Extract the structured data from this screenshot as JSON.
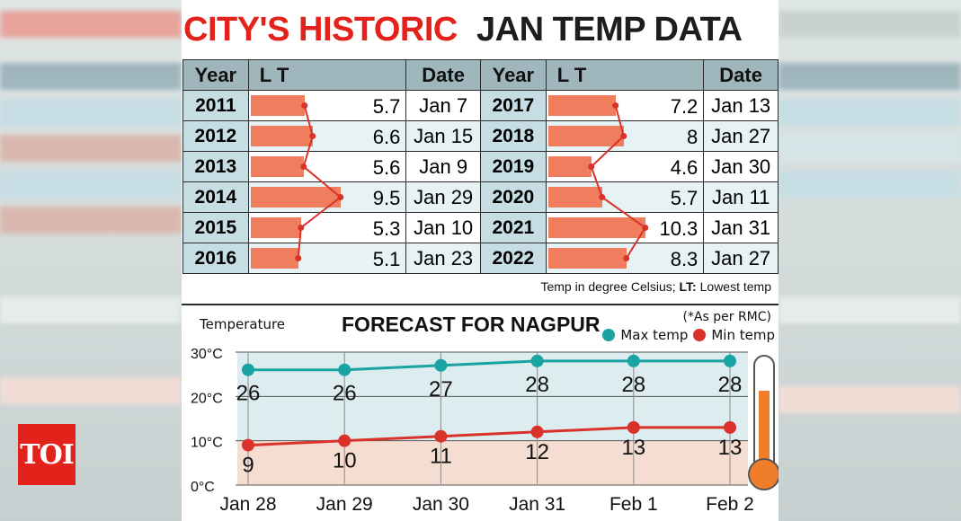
{
  "branding": {
    "logo_text": "TOI"
  },
  "title": {
    "part1": "CITY'S HISTORIC",
    "part2": "JAN TEMP DATA"
  },
  "table": {
    "headers": {
      "year": "Year",
      "lt": "L T",
      "date": "Date"
    },
    "left": [
      {
        "year": "2011",
        "lt": "5.7",
        "date": "Jan 7"
      },
      {
        "year": "2012",
        "lt": "6.6",
        "date": "Jan 15"
      },
      {
        "year": "2013",
        "lt": "5.6",
        "date": "Jan 9"
      },
      {
        "year": "2014",
        "lt": "9.5",
        "date": "Jan 29"
      },
      {
        "year": "2015",
        "lt": "5.3",
        "date": "Jan 10"
      },
      {
        "year": "2016",
        "lt": "5.1",
        "date": "Jan 23"
      }
    ],
    "right": [
      {
        "year": "2017",
        "lt": "7.2",
        "date": "Jan 13"
      },
      {
        "year": "2018",
        "lt": "8",
        "date": "Jan 27"
      },
      {
        "year": "2019",
        "lt": "4.6",
        "date": "Jan 30"
      },
      {
        "year": "2020",
        "lt": "5.7",
        "date": "Jan 11"
      },
      {
        "year": "2021",
        "lt": "10.3",
        "date": "Jan 31"
      },
      {
        "year": "2022",
        "lt": "8.3",
        "date": "Jan 27"
      }
    ],
    "note_prefix": "Temp in degree Celsius; ",
    "note_bold": "LT:",
    "note_suffix": " Lowest temp"
  },
  "forecast": {
    "ylabel": "Temperature",
    "title": "FORECAST FOR NAGPUR",
    "source": "(*As per RMC)",
    "legend_max": "Max temp",
    "legend_min": "Min temp"
  },
  "chart_data": [
    {
      "type": "bar",
      "categories": [
        "2011",
        "2012",
        "2013",
        "2014",
        "2015",
        "2016",
        "2017",
        "2018",
        "2019",
        "2020",
        "2021",
        "2022"
      ],
      "values": [
        5.7,
        6.6,
        5.6,
        9.5,
        5.3,
        5.1,
        7.2,
        8,
        4.6,
        5.7,
        10.3,
        8.3
      ],
      "color": "#f07d5e",
      "line_color": "#d9322a"
    },
    {
      "type": "line",
      "categories": [
        "Jan 28",
        "Jan 29",
        "Jan 30",
        "Jan 31",
        "Feb 1",
        "Feb 2"
      ],
      "series": [
        {
          "name": "Max temp",
          "values": [
            26,
            26,
            27,
            28,
            28,
            28
          ],
          "color": "#1aa3a3"
        },
        {
          "name": "Min temp",
          "values": [
            9,
            10,
            11,
            12,
            13,
            13
          ],
          "color": "#d9322a"
        }
      ],
      "yticks": [
        "30°C",
        "20°C",
        "10°C",
        "0°C"
      ],
      "ylim": [
        0,
        30
      ]
    }
  ]
}
